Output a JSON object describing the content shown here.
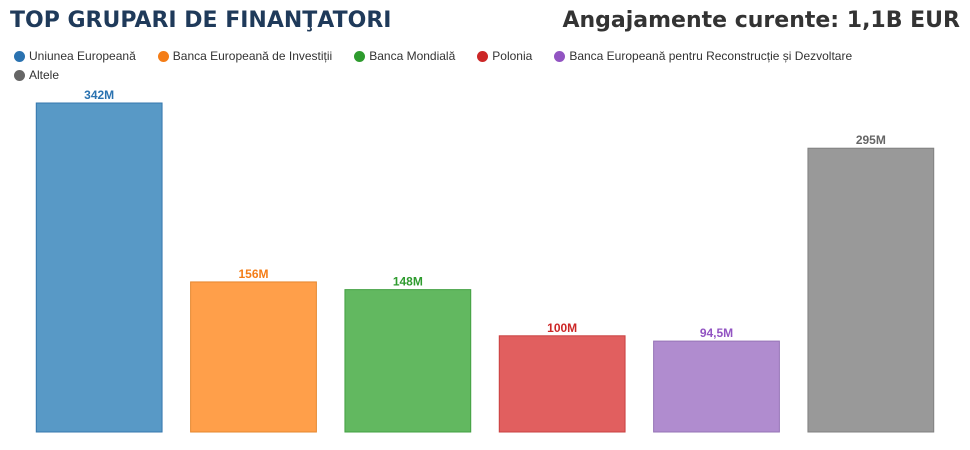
{
  "header": {
    "title": "TOP GRUPARI DE FINANŢATORI",
    "commitments": "Angajamente curente: 1,1B EUR"
  },
  "chart_data": {
    "type": "bar",
    "title": "TOP GRUPARI DE FINANŢATORI",
    "xlabel": "",
    "ylabel": "",
    "legend_position": "top-left",
    "grid": false,
    "ylim": [
      0,
      342
    ],
    "categories": [
      "Uniunea Europeană",
      "Banca Europeană de Investiții",
      "Banca Mondială",
      "Polonia",
      "Banca Europeană pentru Reconstrucție și Dezvoltare",
      "Altele"
    ],
    "values": [
      342,
      156,
      148,
      100,
      94.5,
      295
    ],
    "value_labels": [
      "342M",
      "156M",
      "148M",
      "100M",
      "94,5M",
      "295M"
    ],
    "colors": [
      "#5899c6",
      "#ff9f4a",
      "#62b860",
      "#e15f5f",
      "#b08ccf",
      "#999999"
    ],
    "label_colors": [
      "#2a72b0",
      "#f47d17",
      "#2e9b2e",
      "#cc2727",
      "#9254c2",
      "#666666"
    ],
    "border_colors": [
      "#3577ad",
      "#e6872e",
      "#42a042",
      "#c94040",
      "#9573b6",
      "#808080"
    ]
  }
}
